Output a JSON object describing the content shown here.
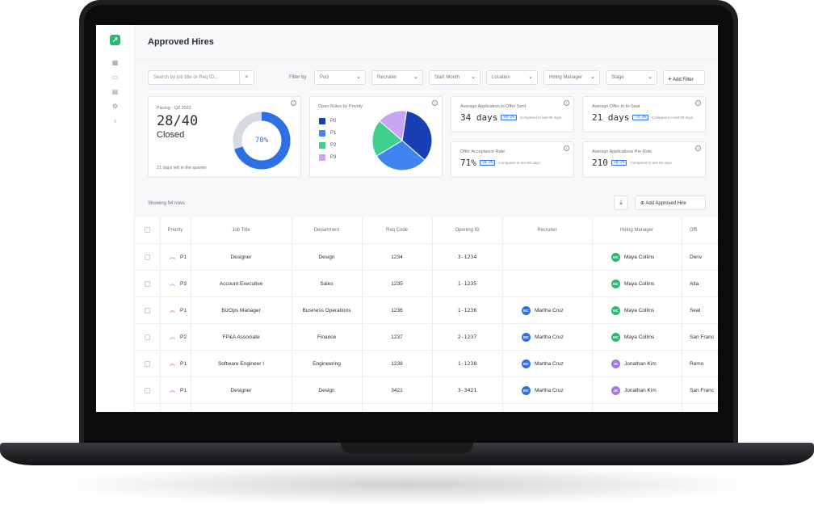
{
  "page": {
    "title": "Approved Hires"
  },
  "colors": {
    "accent": "#2f6fe4",
    "brand": "#2bb673",
    "p0": "#1a3fb4",
    "p1": "#3f84f0",
    "p2": "#3fd18b",
    "p3": "#c9a6f3"
  },
  "sidebar": {
    "logo_icon": "arrow-up-right-icon",
    "icons": [
      "grid-icon",
      "briefcase-icon",
      "chart-icon",
      "gear-icon",
      "lightbulb-icon"
    ]
  },
  "filters": {
    "search_placeholder": "Search by job title or Req ID...",
    "filter_by_label": "Filter by",
    "selects": [
      "Pod",
      "Recruiter",
      "Start Month",
      "Location",
      "Hiring Manager",
      "Stage"
    ],
    "add_filter_label": "Add Filter"
  },
  "pacing": {
    "label": "Pacing - Q2 2022",
    "value": "28/40",
    "status": "Closed",
    "footnote": "21 days left in the quarter",
    "percent_label": "70%",
    "percent": 0.7
  },
  "open_roles": {
    "title": "Open Roles by Priority",
    "legend": [
      "P0",
      "P1",
      "P2",
      "P3"
    ],
    "shares": [
      0.34,
      0.3,
      0.2,
      0.16
    ]
  },
  "metrics": [
    {
      "label": "Average Application to Offer Sent",
      "value": "34 days",
      "delta": "+0.2%",
      "compare": "Compared to last 90 days"
    },
    {
      "label": "Average Offer to In-Seat",
      "value": "21 days",
      "delta": "-3.3%",
      "compare": "Compared to last 90 days"
    },
    {
      "label": "Offer Acceptance Rate",
      "value": "71%",
      "delta": "+0.2%",
      "compare": "Compared to last 90 days"
    },
    {
      "label": "Average Applications Per Role",
      "value": "210",
      "delta": "+0.2%",
      "compare": "Compared to last 90 days"
    }
  ],
  "table": {
    "showing": "Showing 94 rows",
    "add_button": "Add Approved Hire",
    "columns": [
      "Priority",
      "Job Title",
      "Department",
      "Req Code",
      "Opening ID",
      "Recruiter",
      "Hiring Manager",
      "Offi"
    ],
    "rows": [
      {
        "priority": "P1",
        "title": "Designer",
        "dept": "Design",
        "req": "1234",
        "opening": "3-1234",
        "recruiter": "",
        "rec_initials": "",
        "manager": "Maya Collins",
        "mgr_initials": "MC",
        "office": "Denv"
      },
      {
        "priority": "P3",
        "title": "Account Executive",
        "dept": "Sales",
        "req": "1235",
        "opening": "1-1235",
        "recruiter": "",
        "rec_initials": "",
        "manager": "Maya Collins",
        "mgr_initials": "MC",
        "office": "Atla"
      },
      {
        "priority": "P1",
        "title": "BizOps Manager",
        "dept": "Business Operations",
        "req": "1236",
        "opening": "1-1236",
        "recruiter": "Martha Cruz",
        "rec_initials": "MC",
        "manager": "Maya Collins",
        "mgr_initials": "MC",
        "office": "Seat"
      },
      {
        "priority": "P2",
        "title": "FP&A Associate",
        "dept": "Finance",
        "req": "1237",
        "opening": "2-1237",
        "recruiter": "Martha Cruz",
        "rec_initials": "MC",
        "manager": "Maya Collins",
        "mgr_initials": "MC",
        "office": "San Franc"
      },
      {
        "priority": "P1",
        "title": "Software Engineer I",
        "dept": "Engineering",
        "req": "1238",
        "opening": "1-1238",
        "recruiter": "Martha Cruz",
        "rec_initials": "MC",
        "manager": "Jonathan Kim",
        "mgr_initials": "JK",
        "office": "Remo"
      },
      {
        "priority": "P1",
        "title": "Designer",
        "dept": "Design",
        "req": "3421",
        "opening": "3-3421",
        "recruiter": "Martha Cruz",
        "rec_initials": "MC",
        "manager": "Jonathan Kim",
        "mgr_initials": "JK",
        "office": "San Franc"
      }
    ]
  }
}
